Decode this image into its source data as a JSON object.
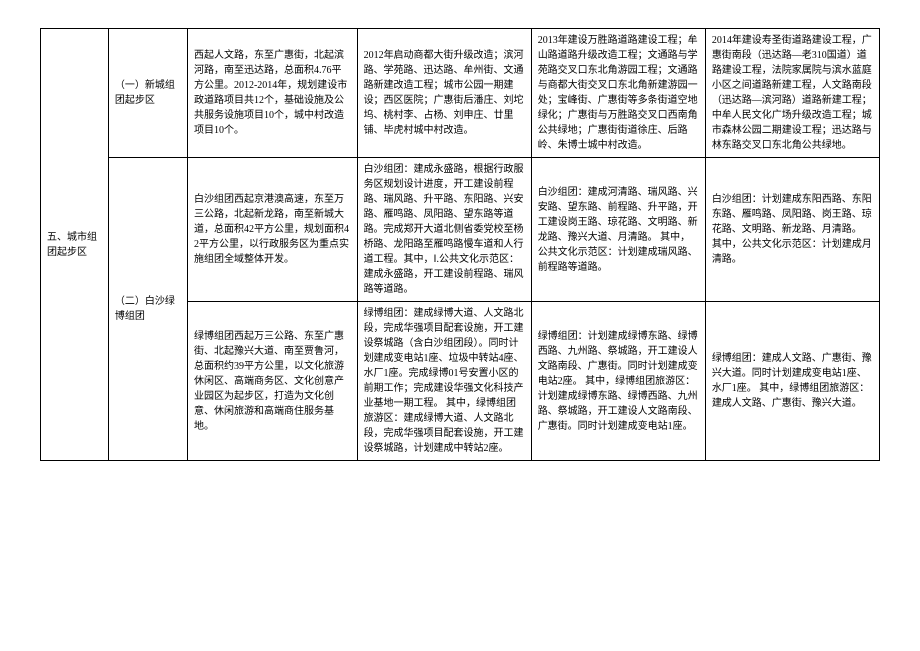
{
  "table": {
    "section_title": "五、城市组团起步区",
    "rows": [
      {
        "subsection": "（一）新城组团起步区",
        "intro": "西起人文路，东至广惠街，北起滨河路，南至迅达路，总面积4.76平方公里。2012-2014年，规划建设市政道路项目共12个，基础设施及公共服务设施项目10个，城中村改造项目10个。",
        "y2012": "2012年启动商都大街升级改造；滨河路、学苑路、迅达路、牟州街、文通路新建改造工程；城市公园一期建设；西区医院；广惠街后潘庄、刘坨坞、桃村李、占杨、刘申庄、廿里铺、毕虎村城中村改造。",
        "y2013": "2013年建设万胜路道路建设工程；牟山路道路升级改造工程；文通路与学苑路交叉口东北角游园工程；文通路与商都大街交叉口东北角新建游园一处；宝峰街、广惠街等多条街道空地绿化；广惠街与万胜路交叉口西南角公共绿地；广惠街街道徐庄、后路岭、朱博士城中村改造。",
        "y2014": "2014年建设寿圣街道路建设工程，广惠街南段（迅达路—老310国道）道路建设工程，法院家属院与滨水蓝庭小区之间道路新建工程，人文路南段（迅达路—滨河路）道路新建工程；中牟人民文化广场升级改造工程；城市森林公园二期建设工程；迅达路与林东路交叉口东北角公共绿地。"
      },
      {
        "subsection": "（二）白沙绿博组团",
        "intro": "白沙组团西起京港澳高速，东至万三公路，北起新龙路，南至新城大道，总面积42平方公里，规划面积42平方公里，以行政服务区为重点实施组团全域整体开发。",
        "y2012": "白沙组团：建成永盛路，根据行政服务区规划设计进度，开工建设前程路、瑞风路、升平路、东阳路、兴安路、雁鸣路、凤阳路、望东路等道路。完成郑开大道北侧省委党校至杨桥路、龙阳路至雁鸣路慢车道和人行道工程。其中，Ⅰ.公共文化示范区：建成永盛路，开工建设前程路、瑞风路等道路。",
        "y2013": "白沙组团：建成河清路、瑞风路、兴安路、望东路、前程路、升平路，开工建设岗王路、琼花路、文明路、新龙路、豫兴大道、月清路。\n其中，公共文化示范区：计划建成瑞风路、前程路等道路。",
        "y2014": "白沙组团：计划建成东阳西路、东阳东路、雁鸣路、凤阳路、岗王路、琼花路、文明路、新龙路、月清路。\n其中，公共文化示范区：计划建成月清路。"
      },
      {
        "intro": "绿博组团西起万三公路、东至广惠街、北起豫兴大道、南至贾鲁河，总面积约39平方公里，以文化旅游休闲区、高端商务区、文化创意产业园区为起步区，打造为文化创意、休闲旅游和高端商住服务基地。",
        "y2012": "绿博组团：建成绿博大道、人文路北段，完成华强项目配套设施，开工建设祭城路（含白沙组团段）。同时计划建成变电站1座、垃圾中转站4座、水厂1座。完成绿博01号安置小区的前期工作；完成建设华强文化科技产业基地一期工程。\n其中，绿博组团旅游区：建成绿博大道、人文路北段，完成华强项目配套设施，开工建设祭城路，计划建成中转站2座。",
        "y2013": "绿博组团：计划建成绿博东路、绿博西路、九州路、祭城路，开工建设人文路南段、广惠街。同时计划建成变电站2座。\n其中，绿博组团旅游区：计划建成绿博东路、绿博西路、九州路、祭城路，开工建设人文路南段、广惠街。同时计划建成变电站1座。",
        "y2014": "绿博组团：建成人文路、广惠街、豫兴大道。同时计划建成变电站1座、水厂1座。\n其中，绿博组团旅游区：建成人文路、广惠街、豫兴大道。"
      }
    ]
  }
}
